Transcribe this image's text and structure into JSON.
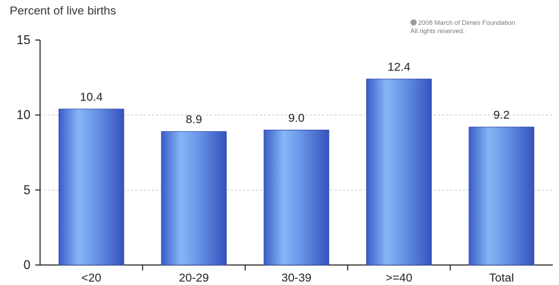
{
  "chart_data": {
    "type": "bar",
    "title": "",
    "xlabel": "",
    "ylabel": "Percent of live births",
    "categories": [
      "<20",
      "20-29",
      "30-39",
      ">=40",
      "Total"
    ],
    "values": [
      10.4,
      8.9,
      9.0,
      12.4,
      9.2
    ],
    "value_labels": [
      "10.4",
      "8.9",
      "9.0",
      "12.4",
      "9.2"
    ],
    "ylim": [
      0,
      15
    ],
    "yticks": [
      0,
      5,
      10,
      15
    ],
    "grid": "dashed horizontal at 5 and 10",
    "bar_color": "#5a86e0"
  },
  "copyright": {
    "line1": "2008 March of Dimes Foundation",
    "line2": "All rights reserved."
  }
}
